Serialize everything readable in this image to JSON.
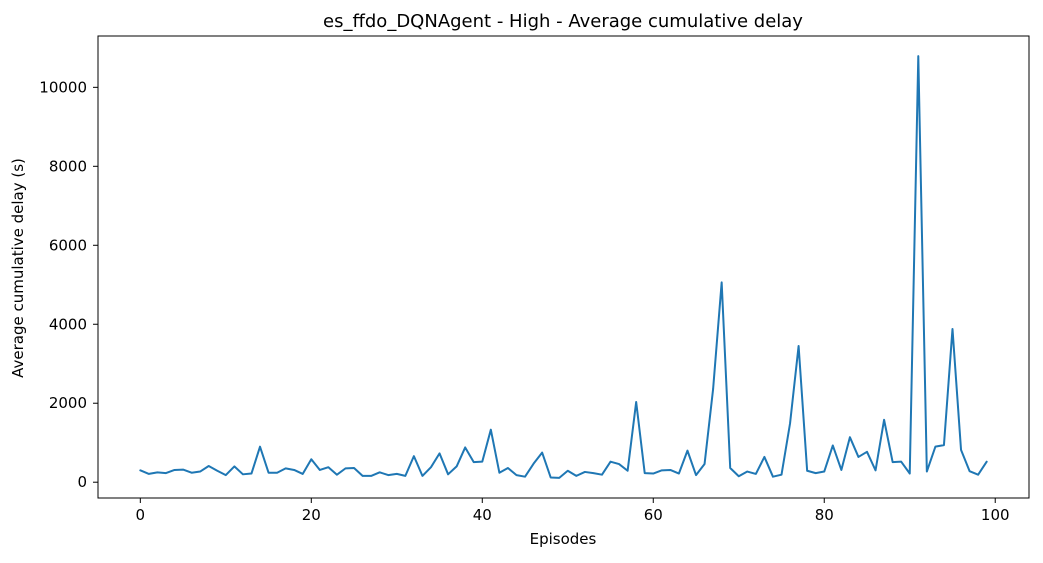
{
  "colors": {
    "line": "#1f77b4",
    "axes": "#000000",
    "background": "#ffffff"
  },
  "chart_data": {
    "type": "line",
    "title": "es_ffdo_DQNAgent - High - Average cumulative delay",
    "xlabel": "Episodes",
    "ylabel": "Average cumulative delay (s)",
    "xlim": [
      -4.95,
      103.95
    ],
    "ylim": [
      -400,
      11300
    ],
    "xticks": [
      0,
      20,
      40,
      60,
      80,
      100
    ],
    "yticks": [
      0,
      2000,
      4000,
      6000,
      8000,
      10000
    ],
    "grid": false,
    "legend": "none",
    "series": [
      {
        "x": [
          0,
          1,
          2,
          3,
          4,
          5,
          6,
          7,
          8,
          9,
          10,
          11,
          12,
          13,
          14,
          15,
          16,
          17,
          18,
          19,
          20,
          21,
          22,
          23,
          24,
          25,
          26,
          27,
          28,
          29,
          30,
          31,
          32,
          33,
          34,
          35,
          36,
          37,
          38,
          39,
          40,
          41,
          42,
          43,
          44,
          45,
          46,
          47,
          48,
          49,
          50,
          51,
          52,
          53,
          54,
          55,
          56,
          57,
          58,
          59,
          60,
          61,
          62,
          63,
          64,
          65,
          66,
          67,
          68,
          69,
          70,
          71,
          72,
          73,
          74,
          75,
          76,
          77,
          78,
          79,
          80,
          81,
          82,
          83,
          84,
          85,
          86,
          87,
          88,
          89,
          90,
          91,
          92,
          93,
          94,
          95,
          96,
          97,
          98,
          99
        ],
        "values": [
          300,
          210,
          250,
          230,
          310,
          320,
          240,
          270,
          410,
          290,
          180,
          400,
          200,
          220,
          900,
          240,
          240,
          350,
          310,
          210,
          580,
          310,
          380,
          190,
          350,
          360,
          160,
          160,
          250,
          180,
          210,
          160,
          660,
          160,
          380,
          730,
          200,
          400,
          880,
          510,
          520,
          1330,
          240,
          360,
          180,
          140,
          470,
          750,
          120,
          110,
          290,
          160,
          260,
          230,
          190,
          520,
          460,
          290,
          2030,
          230,
          220,
          300,
          310,
          220,
          800,
          180,
          460,
          2360,
          5060,
          360,
          150,
          270,
          210,
          640,
          140,
          190,
          1490,
          3450,
          290,
          230,
          270,
          930,
          310,
          1140,
          640,
          770,
          300,
          1580,
          510,
          520,
          220,
          10790,
          270,
          900,
          940,
          3880,
          820,
          280,
          190,
          520
        ]
      }
    ]
  }
}
